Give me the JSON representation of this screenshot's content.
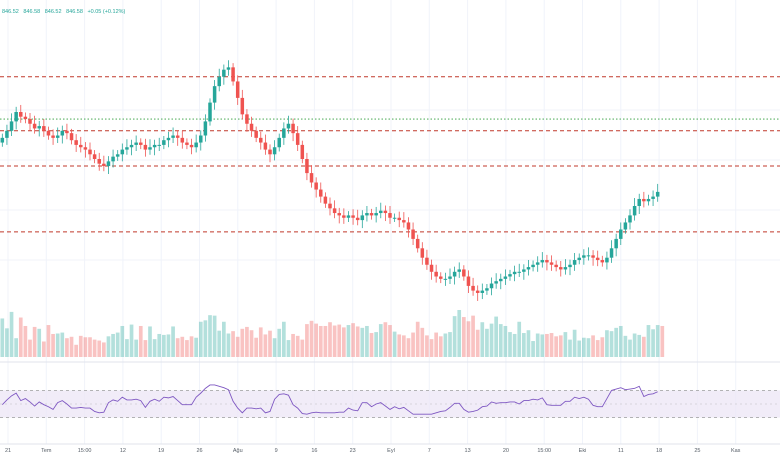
{
  "header": {
    "ohlc": [
      "846.52",
      "846.58",
      "846.52",
      "846.58",
      "+0.05 (+0.12%)"
    ]
  },
  "colors": {
    "up": "#26a69a",
    "down": "#ef5350",
    "level_line": "#c0392b",
    "ma_line": "#2e9d3a",
    "rsi_line": "#7e57c2",
    "rsi_band": "#ede7f6",
    "grid": "#f0f3fa"
  },
  "chart_data": {
    "type": "candlestick",
    "x_tick_labels": [
      "21",
      "Tem",
      "15:00",
      "12",
      "19",
      "26",
      "Ağu",
      "9",
      "16",
      "23",
      "Eyl",
      "7",
      "13",
      "20",
      "15:00",
      "Eki",
      "11",
      "18",
      "25",
      "Kas"
    ],
    "close_series": [
      0.69,
      0.72,
      0.76,
      0.8,
      0.78,
      0.77,
      0.75,
      0.73,
      0.74,
      0.72,
      0.7,
      0.69,
      0.7,
      0.72,
      0.71,
      0.68,
      0.66,
      0.65,
      0.64,
      0.62,
      0.6,
      0.58,
      0.57,
      0.59,
      0.61,
      0.62,
      0.64,
      0.65,
      0.66,
      0.67,
      0.66,
      0.64,
      0.65,
      0.66,
      0.66,
      0.68,
      0.69,
      0.7,
      0.69,
      0.67,
      0.66,
      0.65,
      0.67,
      0.7,
      0.76,
      0.84,
      0.91,
      0.95,
      0.98,
      0.99,
      0.93,
      0.86,
      0.79,
      0.75,
      0.72,
      0.69,
      0.67,
      0.64,
      0.62,
      0.65,
      0.69,
      0.73,
      0.75,
      0.71,
      0.66,
      0.6,
      0.54,
      0.5,
      0.47,
      0.44,
      0.41,
      0.39,
      0.37,
      0.36,
      0.35,
      0.36,
      0.35,
      0.34,
      0.36,
      0.37,
      0.36,
      0.37,
      0.38,
      0.37,
      0.35,
      0.35,
      0.34,
      0.33,
      0.3,
      0.26,
      0.22,
      0.18,
      0.15,
      0.12,
      0.1,
      0.09,
      0.09,
      0.1,
      0.12,
      0.13,
      0.1,
      0.06,
      0.04,
      0.03,
      0.04,
      0.05,
      0.07,
      0.08,
      0.09,
      0.1,
      0.11,
      0.12,
      0.12,
      0.13,
      0.14,
      0.15,
      0.16,
      0.17,
      0.16,
      0.15,
      0.14,
      0.13,
      0.14,
      0.15,
      0.17,
      0.18,
      0.19,
      0.19,
      0.18,
      0.17,
      0.16,
      0.18,
      0.22,
      0.26,
      0.3,
      0.33,
      0.36,
      0.4,
      0.43,
      0.42,
      0.43,
      0.44,
      0.46
    ],
    "close_range": [
      0.0,
      1.0
    ],
    "volume_series": [
      0.82,
      0.61,
      0.96,
      0.4,
      0.84,
      0.66,
      0.37,
      0.64,
      0.6,
      0.33,
      0.68,
      0.49,
      0.5,
      0.52,
      0.4,
      0.43,
      0.26,
      0.45,
      0.42,
      0.42,
      0.37,
      0.35,
      0.31,
      0.44,
      0.49,
      0.52,
      0.66,
      0.38,
      0.69,
      0.37,
      0.66,
      0.36,
      0.65,
      0.38,
      0.49,
      0.47,
      0.48,
      0.65,
      0.4,
      0.43,
      0.36,
      0.44,
      0.41,
      0.75,
      0.78,
      0.89,
      0.88,
      0.56,
      0.75,
      0.5,
      0.55,
      0.43,
      0.6,
      0.64,
      0.57,
      0.41,
      0.63,
      0.48,
      0.56,
      0.4,
      0.6,
      0.75,
      0.36,
      0.49,
      0.45,
      0.37,
      0.7,
      0.77,
      0.71,
      0.66,
      0.66,
      0.74,
      0.67,
      0.69,
      0.63,
      0.68,
      0.72,
      0.65,
      0.62,
      0.66,
      0.51,
      0.53,
      0.7,
      0.74,
      0.68,
      0.54,
      0.48,
      0.46,
      0.4,
      0.52,
      0.75,
      0.62,
      0.46,
      0.38,
      0.52,
      0.44,
      0.5,
      0.53,
      0.87,
      1.0,
      0.85,
      0.76,
      0.88,
      0.58,
      0.74,
      0.6,
      0.71,
      0.86,
      0.7,
      0.66,
      0.53,
      0.49,
      0.75,
      0.51,
      0.57,
      0.34,
      0.5,
      0.48,
      0.49,
      0.51,
      0.44,
      0.46,
      0.53,
      0.37,
      0.58,
      0.35,
      0.41,
      0.4,
      0.46,
      0.36,
      0.42,
      0.57,
      0.55,
      0.62,
      0.66,
      0.45,
      0.37,
      0.5,
      0.47,
      0.43,
      0.68,
      0.59,
      0.68,
      0.66
    ],
    "price_levels": [
      0.95,
      0.72,
      0.57,
      0.29
    ],
    "ma_level": 0.77,
    "rsi_series": [
      49,
      56,
      62,
      66,
      55,
      58,
      53,
      47,
      53,
      49,
      46,
      42,
      52,
      55,
      50,
      44,
      44,
      45,
      44,
      44,
      39,
      37,
      38,
      52,
      56,
      54,
      60,
      56,
      56,
      57,
      55,
      45,
      54,
      57,
      54,
      60,
      59,
      61,
      55,
      49,
      49,
      49,
      60,
      66,
      73,
      78,
      78,
      76,
      74,
      71,
      54,
      44,
      37,
      44,
      44,
      43,
      44,
      37,
      39,
      57,
      64,
      65,
      63,
      49,
      44,
      36,
      35,
      37,
      38,
      37,
      37,
      37,
      37,
      38,
      38,
      44,
      41,
      40,
      52,
      52,
      46,
      50,
      52,
      47,
      42,
      46,
      43,
      45,
      40,
      35,
      35,
      35,
      35,
      35,
      37,
      39,
      40,
      45,
      51,
      51,
      42,
      38,
      39,
      41,
      46,
      47,
      53,
      51,
      52,
      52,
      53,
      53,
      50,
      55,
      55,
      57,
      56,
      59,
      49,
      48,
      48,
      48,
      54,
      54,
      60,
      58,
      60,
      57,
      48,
      46,
      46,
      58,
      70,
      72,
      74,
      71,
      72,
      73,
      76,
      61,
      64,
      65,
      68
    ],
    "rsi_range": [
      0,
      100
    ],
    "rsi_band": [
      30,
      70
    ]
  }
}
